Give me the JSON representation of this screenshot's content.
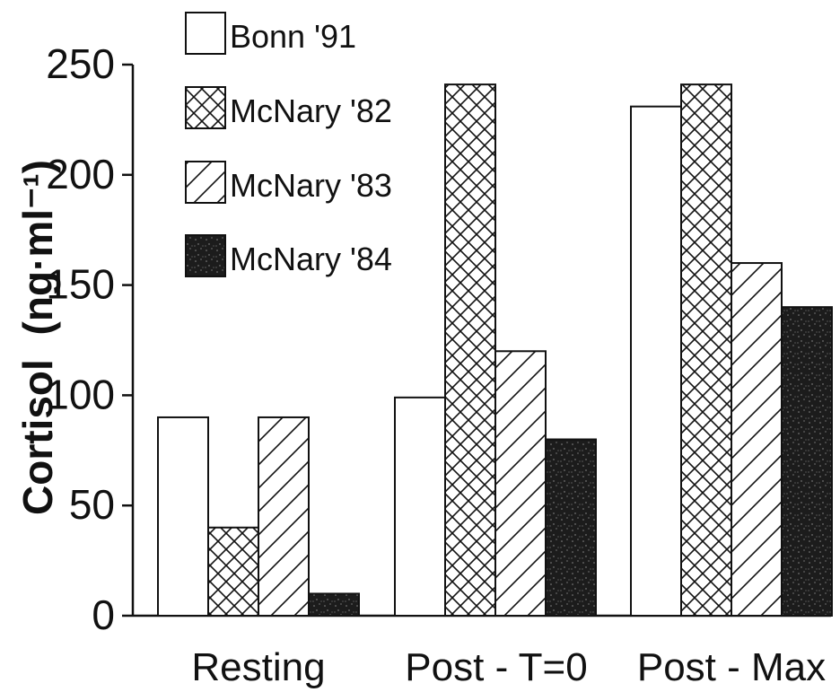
{
  "chart_data": {
    "type": "bar",
    "categories": [
      "Resting",
      "Post - T=0",
      "Post - Max"
    ],
    "series": [
      {
        "name": "Bonn '91",
        "values": [
          90,
          99,
          231
        ],
        "pattern": "solid-white"
      },
      {
        "name": "McNary '82",
        "values": [
          40,
          241,
          241
        ],
        "pattern": "crosshatch"
      },
      {
        "name": "McNary '83",
        "values": [
          90,
          120,
          160
        ],
        "pattern": "diagonal"
      },
      {
        "name": "McNary '84",
        "values": [
          10,
          80,
          140
        ],
        "pattern": "speckled-dark"
      }
    ],
    "y_ticks": [
      "0",
      "50",
      "100",
      "150",
      "200",
      "250"
    ],
    "ylim": [
      0,
      250
    ],
    "ylabel": "Cortisol",
    "ylabel_units": "(ng·ml⁻¹)",
    "legend_placement": "top-left",
    "grid": false
  }
}
